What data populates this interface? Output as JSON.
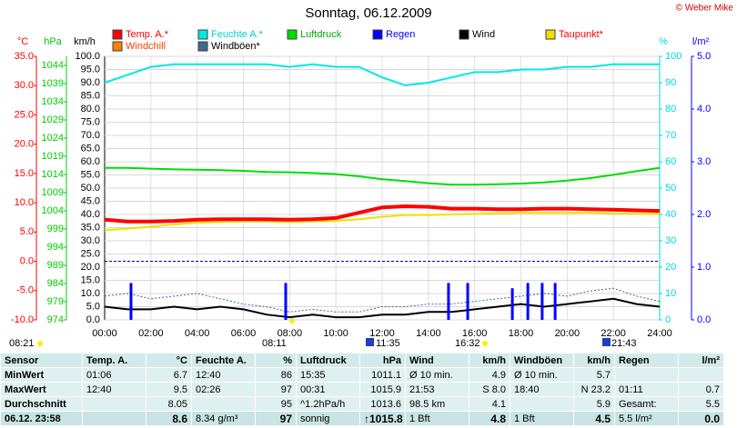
{
  "chart_data": {
    "type": "line",
    "title": "Sonntag, 06.12.2009",
    "credit": "© Weber Mike",
    "xlim": [
      0,
      24
    ],
    "xticks": [
      {
        "value": 0,
        "label": "00:00"
      },
      {
        "value": 2,
        "label": "02:00"
      },
      {
        "value": 4,
        "label": "04:00"
      },
      {
        "value": 6,
        "label": "06:00"
      },
      {
        "value": 8,
        "label": "08:00"
      },
      {
        "value": 10,
        "label": "10:00"
      },
      {
        "value": 12,
        "label": "12:00"
      },
      {
        "value": 14,
        "label": "14:00"
      },
      {
        "value": 16,
        "label": "16:00"
      },
      {
        "value": 18,
        "label": "18:00"
      },
      {
        "value": 20,
        "label": "20:00"
      },
      {
        "value": 22,
        "label": "22:00"
      },
      {
        "value": 24,
        "label": "24:00"
      }
    ],
    "x": [
      0,
      1,
      2,
      3,
      4,
      5,
      6,
      7,
      8,
      9,
      10,
      11,
      12,
      13,
      14,
      15,
      16,
      17,
      18,
      19,
      20,
      21,
      22,
      23,
      24
    ],
    "axes": [
      {
        "id": "temp",
        "label": "°C",
        "color": "#ff0000",
        "ylim": [
          -10,
          35
        ],
        "yticks": [
          {
            "value": 35,
            "label": "35.0"
          },
          {
            "value": 30,
            "label": "30.0"
          },
          {
            "value": 25,
            "label": "25.0"
          },
          {
            "value": 20,
            "label": "20.0"
          },
          {
            "value": 15,
            "label": "15.0"
          },
          {
            "value": 10,
            "label": "10.0"
          },
          {
            "value": 5,
            "label": "5.0"
          },
          {
            "value": 0,
            "label": "0.0"
          },
          {
            "value": -5,
            "label": "-5.0"
          },
          {
            "value": -10,
            "label": "-10.0"
          }
        ]
      },
      {
        "id": "hpa",
        "label": "hPa",
        "color": "#00cc00",
        "ylim": [
          974,
          1046.5
        ],
        "yticks": [
          1044,
          1039,
          1034,
          1029,
          1024,
          1019,
          1014,
          1009,
          1004,
          999,
          994,
          989,
          984,
          979,
          974
        ]
      },
      {
        "id": "kmh",
        "label": "km/h",
        "color": "#000000",
        "grid": true,
        "ylim": [
          0,
          100
        ],
        "yticks": [
          {
            "value": 100,
            "label": "100.0"
          },
          {
            "value": 95,
            "label": "95.0"
          },
          {
            "value": 90,
            "label": "90.0"
          },
          {
            "value": 85,
            "label": "85.0"
          },
          {
            "value": 80,
            "label": "80.0"
          },
          {
            "value": 75,
            "label": "75.0"
          },
          {
            "value": 70,
            "label": "70.0"
          },
          {
            "value": 65,
            "label": "65.0"
          },
          {
            "value": 60,
            "label": "60.0"
          },
          {
            "value": 55,
            "label": "55.0"
          },
          {
            "value": 50,
            "label": "50.0"
          },
          {
            "value": 45,
            "label": "45.0"
          },
          {
            "value": 40,
            "label": "40.0"
          },
          {
            "value": 35,
            "label": "35.0"
          },
          {
            "value": 30,
            "label": "30.0"
          },
          {
            "value": 25,
            "label": "25.0"
          },
          {
            "value": 20,
            "label": "20.0"
          },
          {
            "value": 15,
            "label": "15.0"
          },
          {
            "value": 10,
            "label": "10.0"
          },
          {
            "value": 5,
            "label": "5.0"
          },
          {
            "value": 0,
            "label": "0.0"
          }
        ]
      },
      {
        "id": "pct",
        "label": "%",
        "color": "#00d8d8",
        "ylim": [
          0,
          100
        ],
        "yticks": [
          100,
          90,
          80,
          70,
          60,
          50,
          40,
          30,
          20,
          10,
          0
        ]
      },
      {
        "id": "rain",
        "label": "l/m²",
        "color": "#0000ff",
        "ylim": [
          0,
          5
        ],
        "yticks": [
          {
            "value": 5,
            "label": "5.0"
          },
          {
            "value": 4,
            "label": "4.0"
          },
          {
            "value": 3,
            "label": "3.0"
          },
          {
            "value": 2,
            "label": "2.0"
          },
          {
            "value": 1,
            "label": "1.0"
          },
          {
            "value": 0,
            "label": "0.0"
          }
        ]
      }
    ],
    "reference_line": {
      "axis": "temp",
      "value": 0,
      "color": "#0000a0"
    },
    "series": [
      {
        "name": "Temp. A.*",
        "color": "#ff0000",
        "label_color": "#ff0000",
        "axis": "temp",
        "style": "thick",
        "values": [
          7.1,
          6.8,
          6.8,
          6.9,
          7.1,
          7.2,
          7.2,
          7.2,
          7.1,
          7.2,
          7.4,
          8.3,
          9.2,
          9.4,
          9.3,
          9.0,
          9.0,
          8.9,
          8.9,
          9.0,
          9.0,
          8.9,
          8.8,
          8.7,
          8.6
        ]
      },
      {
        "name": "Feuchte A.*",
        "color": "#00e8e8",
        "label_color": "#00d0d0",
        "axis": "pct",
        "style": "line",
        "values": [
          90,
          93,
          96,
          97,
          97,
          97,
          97,
          97,
          96,
          97,
          96,
          96,
          92,
          89,
          90,
          92,
          94,
          94,
          95,
          95,
          96,
          96,
          97,
          97,
          97
        ]
      },
      {
        "name": "Luftdruck",
        "color": "#00dd00",
        "label_color": "#00aa00",
        "axis": "hpa",
        "style": "line",
        "values": [
          1015.8,
          1015.8,
          1015.6,
          1015.4,
          1015.3,
          1015.2,
          1015.0,
          1014.7,
          1014.6,
          1014.4,
          1014.1,
          1013.5,
          1012.7,
          1012.2,
          1011.6,
          1011.2,
          1011.2,
          1011.3,
          1011.5,
          1011.8,
          1012.3,
          1013.0,
          1013.9,
          1014.9,
          1015.8
        ]
      },
      {
        "name": "Regen",
        "color": "#0000ff",
        "label_color": "#0000ff",
        "axis": "rain",
        "style": "bar",
        "x": [
          1.14,
          7.83,
          14.87,
          15.7,
          17.63,
          18.3,
          18.92,
          19.48
        ],
        "values": [
          0.7,
          0.7,
          0.7,
          0.7,
          0.6,
          0.7,
          0.7,
          0.7
        ]
      },
      {
        "name": "Wind",
        "color": "#000000",
        "label_color": "#000000",
        "axis": "kmh",
        "style": "line",
        "values": [
          5,
          4,
          4,
          5,
          4,
          5,
          4,
          2,
          1,
          2,
          1,
          1,
          2,
          2,
          3,
          3,
          4,
          5,
          6,
          5,
          6,
          7,
          8,
          6,
          5
        ]
      },
      {
        "name": "Taupunkt*",
        "color": "#f0e000",
        "label_color": "#ff0000",
        "axis": "temp",
        "style": "line",
        "values": [
          5.3,
          5.6,
          5.9,
          6.3,
          6.6,
          6.7,
          6.8,
          6.8,
          6.7,
          6.8,
          6.9,
          7.2,
          7.6,
          7.9,
          7.9,
          8.0,
          8.1,
          8.2,
          8.3,
          8.3,
          8.3,
          8.3,
          8.2,
          8.1,
          8.1
        ]
      },
      {
        "name": "Windchill",
        "color": "#ff8000",
        "label_color": "#ff4000",
        "axis": "temp",
        "style": "line",
        "values": [
          7.0,
          6.7,
          6.7,
          6.8,
          7.0,
          7.1,
          7.1,
          7.1,
          7.0,
          7.1,
          7.3,
          8.2,
          9.1,
          9.3,
          9.2,
          8.9,
          8.9,
          8.8,
          8.8,
          8.9,
          8.9,
          8.8,
          8.7,
          8.6,
          8.5
        ]
      },
      {
        "name": "Windböen*",
        "color": "#406890",
        "label_color": "#000000",
        "axis": "kmh",
        "style": "dotted",
        "values": [
          9,
          10,
          8,
          9,
          10,
          8,
          6,
          5,
          3,
          4,
          3,
          3,
          5,
          5,
          6,
          6,
          7,
          8,
          9,
          10,
          9,
          11,
          12,
          9,
          7
        ]
      }
    ],
    "sun_labels": [
      "08:21",
      "08:11",
      "11:35",
      "16:32",
      "21:43"
    ]
  },
  "table": {
    "header": [
      "Sensor",
      "Temp. A.",
      "°C",
      "Feuchte A.",
      "%",
      "Luftdruck",
      "hPa",
      "Wind",
      "km/h",
      "Windböen",
      "km/h",
      "Regen",
      "l/m²"
    ],
    "rows": [
      {
        "label": "MinWert",
        "cells": [
          [
            "01:06",
            "6.7"
          ],
          [
            "12:40",
            "86"
          ],
          [
            "15:35",
            "1011.1"
          ],
          [
            "Ø 10 min.",
            "4.9"
          ],
          [
            "Ø 10 min.",
            "5.7"
          ],
          null
        ]
      },
      {
        "label": "MaxWert",
        "cells": [
          [
            "12:40",
            "9.5"
          ],
          [
            "02:26",
            "97"
          ],
          [
            "00:31",
            "1015.9"
          ],
          [
            "21:53",
            "S 8.0"
          ],
          [
            "18:40",
            "N 23.2"
          ],
          [
            "01:11",
            "0.7"
          ]
        ]
      },
      {
        "label": "Durchschnitt",
        "cells": [
          [
            null,
            "8.05"
          ],
          [
            null,
            "95"
          ],
          [
            "^1.2hPa/h",
            "1013.6"
          ],
          [
            "98.5 km",
            "4.1"
          ],
          [
            null,
            "5.9"
          ],
          [
            "Gesamt:",
            "5.5"
          ]
        ]
      },
      {
        "label": "06.12. 23:58",
        "cells": [
          [
            null,
            "8.6"
          ],
          [
            "8.34 g/m³",
            "97"
          ],
          [
            "sonnig",
            "↑1015.8"
          ],
          [
            "1 Bft",
            "4.8"
          ],
          [
            "1 Bft",
            "4.5"
          ],
          [
            "5.5 l/m²",
            "0.0"
          ]
        ]
      }
    ]
  }
}
